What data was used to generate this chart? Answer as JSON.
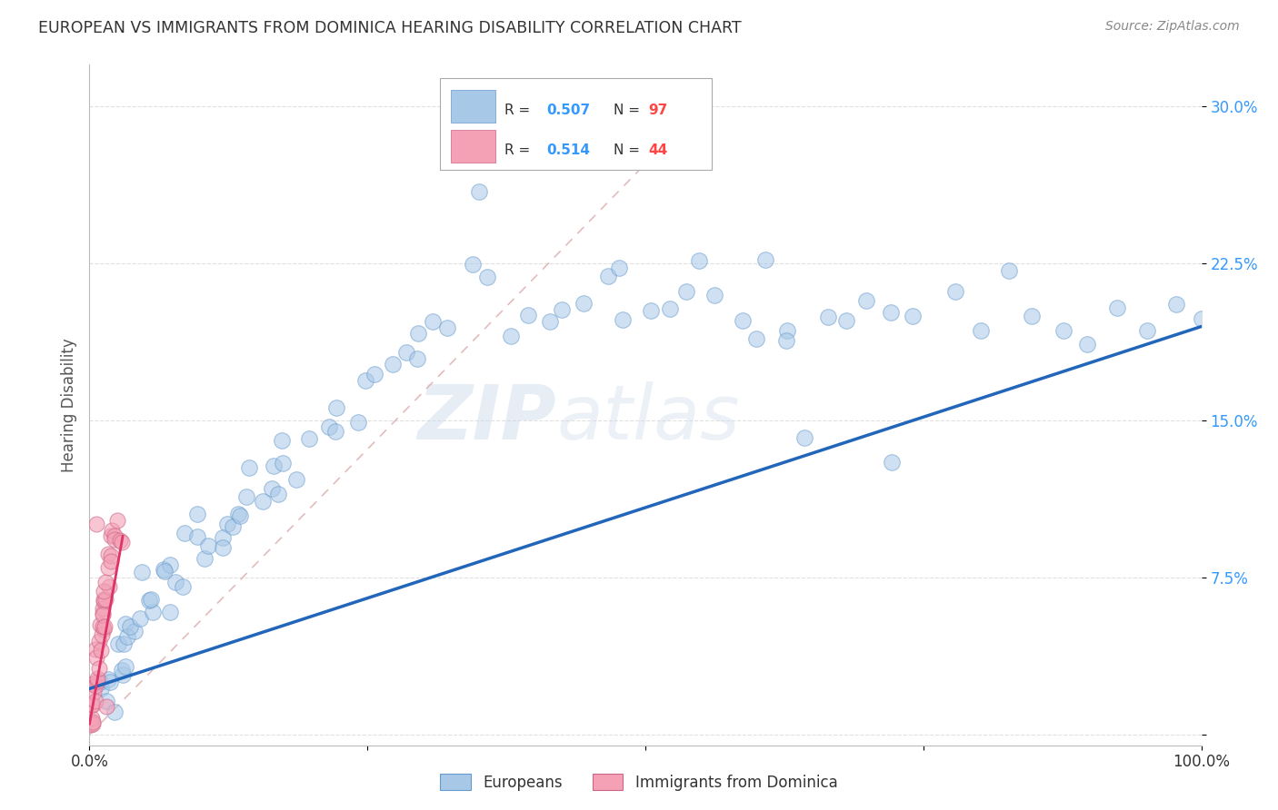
{
  "title": "EUROPEAN VS IMMIGRANTS FROM DOMINICA HEARING DISABILITY CORRELATION CHART",
  "source": "Source: ZipAtlas.com",
  "ylabel": "Hearing Disability",
  "xlim": [
    0,
    1.0
  ],
  "ylim": [
    -0.005,
    0.32
  ],
  "watermark_zip": "ZIP",
  "watermark_atlas": "atlas",
  "blue_scatter_color": "#a8c8e8",
  "blue_scatter_edge": "#6699cc",
  "blue_line_color": "#2266bb",
  "pink_scatter_color": "#f4a0b5",
  "pink_scatter_edge": "#cc6688",
  "pink_line_color": "#dd3366",
  "diag_line_color": "#ddaaaa",
  "grid_color": "#dddddd",
  "background_color": "#ffffff",
  "title_color": "#333333",
  "source_color": "#888888",
  "ylabel_color": "#555555",
  "ytick_color": "#3399ff",
  "xtick_color": "#333333",
  "legend_text_color": "#333333",
  "legend_r_color": "#3399ff",
  "legend_n_color": "#ff4444",
  "eu_x": [
    0.008,
    0.01,
    0.012,
    0.015,
    0.018,
    0.02,
    0.022,
    0.025,
    0.028,
    0.03,
    0.033,
    0.036,
    0.039,
    0.042,
    0.045,
    0.048,
    0.052,
    0.055,
    0.058,
    0.062,
    0.065,
    0.068,
    0.072,
    0.075,
    0.08,
    0.085,
    0.09,
    0.095,
    0.1,
    0.105,
    0.11,
    0.115,
    0.12,
    0.125,
    0.13,
    0.135,
    0.14,
    0.145,
    0.15,
    0.155,
    0.16,
    0.165,
    0.17,
    0.175,
    0.18,
    0.19,
    0.2,
    0.21,
    0.22,
    0.23,
    0.24,
    0.25,
    0.26,
    0.27,
    0.28,
    0.29,
    0.3,
    0.31,
    0.32,
    0.34,
    0.36,
    0.38,
    0.4,
    0.42,
    0.44,
    0.46,
    0.48,
    0.5,
    0.52,
    0.54,
    0.56,
    0.58,
    0.6,
    0.62,
    0.64,
    0.66,
    0.68,
    0.7,
    0.72,
    0.75,
    0.78,
    0.8,
    0.82,
    0.85,
    0.88,
    0.9,
    0.92,
    0.95,
    0.98,
    1.0,
    0.35,
    0.42,
    0.48,
    0.55,
    0.61,
    0.65,
    0.72
  ],
  "eu_y": [
    0.02,
    0.025,
    0.018,
    0.022,
    0.03,
    0.028,
    0.035,
    0.032,
    0.04,
    0.038,
    0.042,
    0.045,
    0.05,
    0.048,
    0.052,
    0.055,
    0.058,
    0.06,
    0.062,
    0.065,
    0.068,
    0.07,
    0.075,
    0.072,
    0.08,
    0.085,
    0.082,
    0.09,
    0.088,
    0.092,
    0.095,
    0.1,
    0.098,
    0.102,
    0.105,
    0.108,
    0.11,
    0.112,
    0.115,
    0.118,
    0.12,
    0.122,
    0.125,
    0.128,
    0.13,
    0.135,
    0.14,
    0.145,
    0.15,
    0.155,
    0.16,
    0.165,
    0.17,
    0.175,
    0.18,
    0.185,
    0.19,
    0.195,
    0.2,
    0.21,
    0.215,
    0.2,
    0.195,
    0.205,
    0.2,
    0.21,
    0.205,
    0.195,
    0.2,
    0.205,
    0.195,
    0.2,
    0.195,
    0.2,
    0.195,
    0.2,
    0.195,
    0.205,
    0.195,
    0.2,
    0.2,
    0.195,
    0.2,
    0.195,
    0.2,
    0.195,
    0.2,
    0.195,
    0.2,
    0.195,
    0.26,
    0.21,
    0.235,
    0.23,
    0.22,
    0.14,
    0.14
  ],
  "dom_x": [
    0.001,
    0.002,
    0.003,
    0.003,
    0.004,
    0.004,
    0.005,
    0.005,
    0.006,
    0.006,
    0.007,
    0.007,
    0.008,
    0.008,
    0.009,
    0.009,
    0.01,
    0.01,
    0.011,
    0.011,
    0.012,
    0.012,
    0.013,
    0.013,
    0.014,
    0.014,
    0.015,
    0.015,
    0.016,
    0.016,
    0.017,
    0.018,
    0.019,
    0.02,
    0.021,
    0.022,
    0.023,
    0.025,
    0.027,
    0.03,
    0.001,
    0.002,
    0.008,
    0.015
  ],
  "dom_y": [
    0.008,
    0.01,
    0.012,
    0.015,
    0.018,
    0.02,
    0.022,
    0.025,
    0.028,
    0.03,
    0.032,
    0.035,
    0.038,
    0.04,
    0.042,
    0.045,
    0.048,
    0.05,
    0.052,
    0.055,
    0.058,
    0.06,
    0.062,
    0.065,
    0.068,
    0.07,
    0.072,
    0.075,
    0.078,
    0.08,
    0.082,
    0.085,
    0.088,
    0.09,
    0.092,
    0.095,
    0.098,
    0.1,
    0.092,
    0.095,
    0.005,
    0.008,
    0.1,
    0.01
  ],
  "eu_line_x": [
    0.0,
    1.0
  ],
  "eu_line_y": [
    0.022,
    0.195
  ],
  "dom_line_x": [
    0.0,
    0.03
  ],
  "dom_line_y": [
    0.005,
    0.095
  ],
  "diag_line_x": [
    0.0,
    0.55
  ],
  "diag_line_y": [
    0.0,
    0.3
  ]
}
